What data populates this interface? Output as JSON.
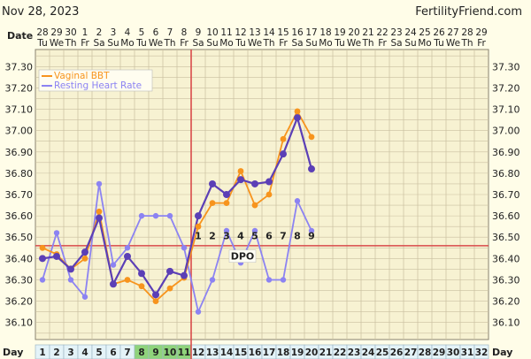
{
  "header": {
    "date_text": "Nov 28, 2023",
    "site": "FertilityFriend.com",
    "date_row_label": "Date",
    "day_row_label": "Day"
  },
  "colors": {
    "background": "#FFFDE8",
    "plot_bg": "#F7F2D2",
    "grid": "#C9BFA0",
    "bbt": "#F7941D",
    "bbt_marker": "#5B3FB6",
    "hr": "#8C83F2",
    "coverline": "#D94A4A",
    "ovulation_line": "#D94A4A",
    "day_highlight": "#8FD37B",
    "axis_text": "#222222"
  },
  "chart_data": {
    "type": "line",
    "title": "",
    "xlabel": "Day",
    "ylabel": "",
    "dates": [
      "28",
      "29",
      "30",
      "1",
      "2",
      "3",
      "4",
      "5",
      "6",
      "7",
      "8",
      "9",
      "10",
      "11",
      "12",
      "13",
      "14",
      "15",
      "16",
      "17",
      "18",
      "19",
      "20",
      "21",
      "22",
      "23",
      "24",
      "25",
      "26",
      "27",
      "28",
      "29"
    ],
    "weekdays": [
      "Tu",
      "We",
      "Th",
      "Fr",
      "Sa",
      "Su",
      "Mo",
      "Tu",
      "We",
      "Th",
      "Fr",
      "Sa",
      "Su",
      "Mo",
      "Tu",
      "We",
      "Th",
      "Fr",
      "Sa",
      "Su",
      "Mo",
      "Tu",
      "We",
      "Th",
      "Fr",
      "Sa",
      "Su",
      "Mo",
      "Tu",
      "We",
      "Th",
      "Fr"
    ],
    "days": [
      1,
      2,
      3,
      4,
      5,
      6,
      7,
      8,
      9,
      10,
      11,
      12,
      13,
      14,
      15,
      16,
      17,
      18,
      19,
      20,
      21,
      22,
      23,
      24,
      25,
      26,
      27,
      28,
      29,
      30,
      31,
      32
    ],
    "highlighted_days": [
      8,
      9,
      10,
      11
    ],
    "y_ticks": [
      36.1,
      36.2,
      36.3,
      36.4,
      36.5,
      36.6,
      36.7,
      36.8,
      36.9,
      37.0,
      37.1,
      37.2,
      37.3
    ],
    "ylim": [
      36.02,
      37.38
    ],
    "ovulation_day": 11.5,
    "coverline": 36.46,
    "dpo_labels": [
      "1",
      "2",
      "3",
      "4",
      "5",
      "6",
      "7",
      "8",
      "9"
    ],
    "dpo_text": "DPO",
    "legend": [
      "Vaginal BBT",
      "Resting Heart Rate"
    ],
    "legend_position": "top-left",
    "series": [
      {
        "name": "Vaginal BBT",
        "x": [
          1,
          2,
          3,
          4,
          5,
          6,
          7,
          8,
          9,
          10,
          11,
          12,
          13,
          14,
          15,
          16,
          17,
          18,
          19,
          20
        ],
        "values": [
          36.45,
          36.42,
          36.35,
          36.4,
          36.62,
          36.28,
          36.3,
          36.27,
          36.2,
          36.26,
          36.31,
          36.55,
          36.66,
          36.66,
          36.81,
          36.65,
          36.7,
          36.96,
          37.09,
          36.97
        ]
      },
      {
        "name": "Resting Heart Rate",
        "x": [
          1,
          2,
          3,
          4,
          5,
          6,
          7,
          8,
          9,
          10,
          11,
          12,
          13,
          14,
          15,
          16,
          17,
          18,
          19,
          20
        ],
        "values": [
          36.3,
          36.52,
          36.3,
          36.22,
          36.75,
          36.37,
          36.45,
          36.6,
          36.6,
          36.6,
          36.45,
          36.15,
          36.3,
          36.53,
          36.38,
          36.53,
          36.3,
          36.3,
          36.67,
          36.53
        ]
      },
      {
        "name": "BBT line",
        "x": [
          1,
          2,
          3,
          4,
          5,
          6,
          7,
          8,
          9,
          10,
          11,
          12,
          13,
          14,
          15,
          16,
          17,
          18,
          19,
          20
        ],
        "values": [
          36.4,
          36.41,
          36.35,
          36.43,
          36.59,
          36.28,
          36.41,
          36.33,
          36.23,
          36.34,
          36.32,
          36.6,
          36.75,
          36.7,
          36.77,
          36.75,
          36.76,
          36.89,
          37.06,
          36.82
        ]
      }
    ]
  }
}
